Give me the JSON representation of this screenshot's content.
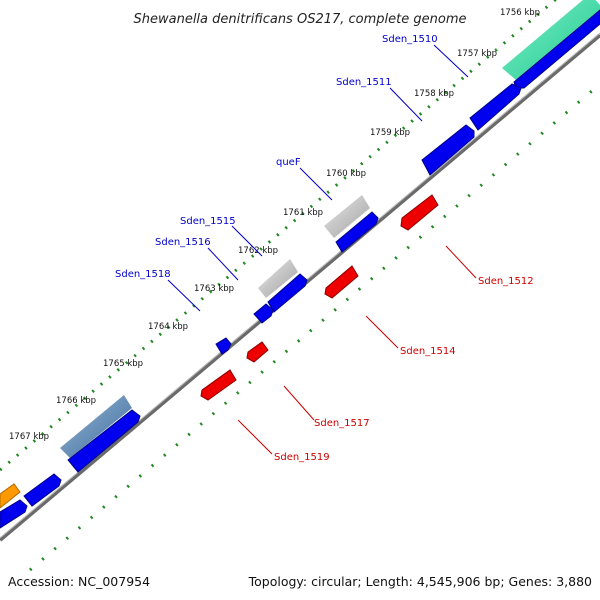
{
  "title": "Shewanella denitrificans OS217, complete genome",
  "footer": {
    "accession": "Accession: NC_007954",
    "summary": "Topology: circular; Length: 4,545,906 bp; Genes: 3,880"
  },
  "ticks": [
    "1756 kbp",
    "1757 kbp",
    "1758 kbp",
    "1759 kbp",
    "1760 kbp",
    "1761 kbp",
    "1762 kbp",
    "1763 kbp",
    "1764 kbp",
    "1765 kbp",
    "1766 kbp",
    "1767 kbp"
  ],
  "gene_labels": {
    "forward": [
      "Sden_1510",
      "Sden_1511",
      "queF",
      "Sden_1515",
      "Sden_1516",
      "Sden_1518"
    ],
    "reverse": [
      "Sden_1512",
      "Sden_1514",
      "Sden_1517",
      "Sden_1519"
    ]
  },
  "colors": {
    "forward_cds": "#0000ee",
    "reverse_cds": "#ee0000",
    "rna_gray": "#b0b0b0",
    "highlight_green": "#30e0a0",
    "highlight_steel": "#5080b0",
    "highlight_orange": "#ff9900",
    "backbone": "#777777",
    "dots": "#228822",
    "label_forward": "#0000cc",
    "label_reverse": "#cc0000"
  }
}
